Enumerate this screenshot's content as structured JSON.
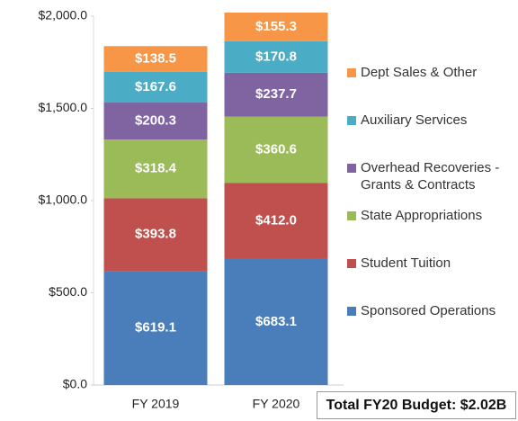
{
  "chart_data": {
    "type": "stacked_bar",
    "categories": [
      "FY 2019",
      "FY 2020"
    ],
    "series": [
      {
        "name": "Sponsored Operations",
        "color": "#4a7ebb",
        "values": [
          619.1,
          683.1
        ],
        "value_labels": [
          "$619.1",
          "$683.1"
        ]
      },
      {
        "name": "Student Tuition",
        "color": "#c0504d",
        "values": [
          393.8,
          412.0
        ],
        "value_labels": [
          "$393.8",
          "$412.0"
        ]
      },
      {
        "name": "State Appropriations",
        "color": "#9bbb59",
        "values": [
          318.4,
          360.6
        ],
        "value_labels": [
          "$318.4",
          "$360.6"
        ]
      },
      {
        "name": "Overhead Recoveries - Grants & Contracts",
        "color": "#8064a2",
        "values": [
          200.3,
          237.7
        ],
        "value_labels": [
          "$200.3",
          "$237.7"
        ]
      },
      {
        "name": "Auxiliary Services",
        "color": "#4bacc6",
        "values": [
          167.6,
          170.8
        ],
        "value_labels": [
          "$167.6",
          "$170.8"
        ]
      },
      {
        "name": "Dept Sales & Other",
        "color": "#f79646",
        "values": [
          138.5,
          155.3
        ],
        "value_labels": [
          "$138.5",
          "$155.3"
        ]
      }
    ],
    "ylim": [
      0,
      2000
    ],
    "yticks": [
      {
        "value": 0,
        "label": "$0.0"
      },
      {
        "value": 500,
        "label": "$500.0"
      },
      {
        "value": 1000,
        "label": "$1,000.0"
      },
      {
        "value": 1500,
        "label": "$1,500.0"
      },
      {
        "value": 2000,
        "label": "$2,000.0"
      }
    ],
    "legend": "right",
    "annotation": "Total FY20 Budget: $2.02B"
  }
}
